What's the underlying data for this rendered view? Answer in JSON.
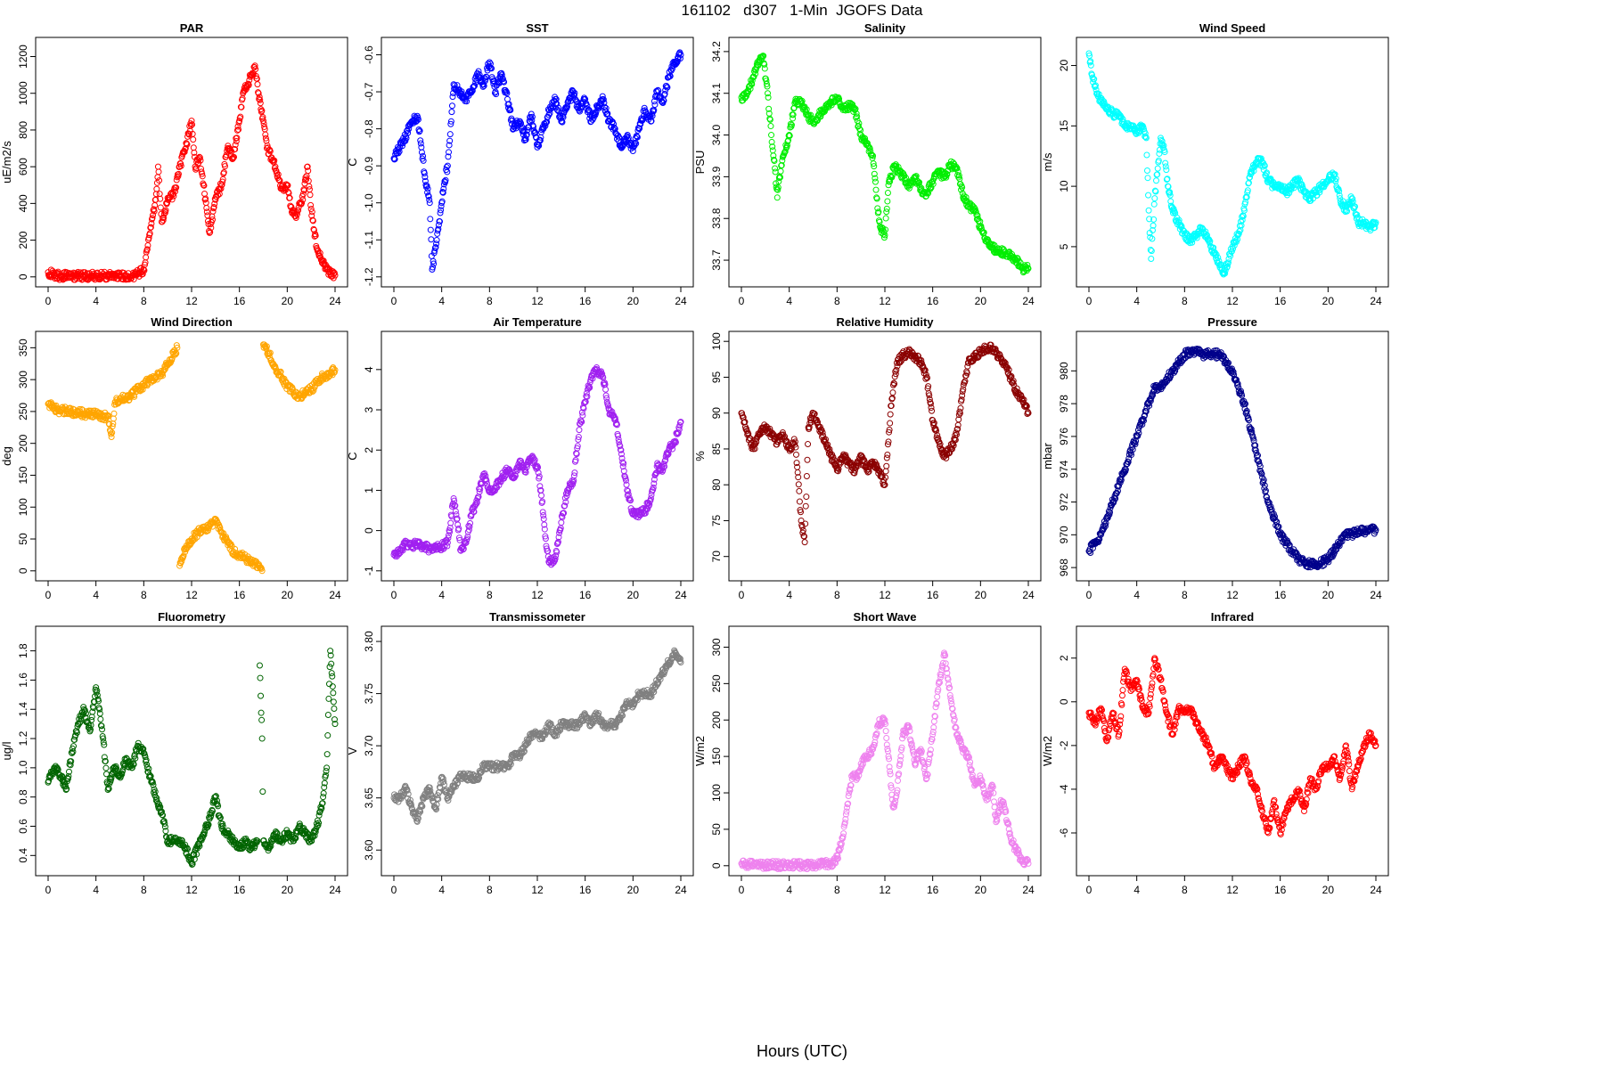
{
  "figure": {
    "title": "161102   d307   1-Min  JGOFS Data",
    "xlabel": "Hours (UTC)"
  },
  "chart_data": [
    {
      "type": "scatter",
      "title": "PAR",
      "ylabel": "uE/m2/s",
      "color": "#ff0000",
      "xlim": [
        0,
        24
      ],
      "ylim": [
        0,
        1250
      ],
      "x": [
        0,
        0.5,
        1,
        2,
        3,
        4,
        5,
        6,
        7,
        7.5,
        8,
        8.3,
        8.6,
        9,
        9.2,
        9.5,
        9.8,
        10,
        10.5,
        11,
        11.5,
        12,
        12.3,
        12.7,
        13,
        13.5,
        14,
        14.5,
        15,
        15.5,
        16,
        16.3,
        16.7,
        17,
        17.3,
        17.6,
        18,
        18.3,
        18.7,
        19,
        19.5,
        20,
        20.3,
        20.7,
        21,
        21.3,
        21.7,
        22,
        22.5,
        23,
        23.5,
        24
      ],
      "y": [
        25,
        10,
        5,
        5,
        5,
        5,
        5,
        5,
        5,
        15,
        40,
        150,
        270,
        420,
        600,
        300,
        350,
        430,
        440,
        600,
        700,
        850,
        600,
        650,
        500,
        240,
        420,
        500,
        700,
        650,
        850,
        1000,
        1050,
        1100,
        1150,
        1000,
        850,
        700,
        650,
        600,
        480,
        500,
        380,
        330,
        400,
        420,
        600,
        370,
        150,
        70,
        25,
        8
      ]
    },
    {
      "type": "scatter",
      "title": "SST",
      "ylabel": "C",
      "color": "#0000ff",
      "xlim": [
        0,
        24
      ],
      "ylim": [
        -1.2,
        -0.58
      ],
      "x": [
        0,
        0.5,
        1,
        1.5,
        2,
        2.3,
        2.6,
        3,
        3.2,
        3.5,
        3.8,
        4,
        4.2,
        4.5,
        4.8,
        5,
        5.5,
        6,
        6.5,
        7,
        7.5,
        8,
        8.5,
        9,
        9.5,
        10,
        10.5,
        11,
        11.5,
        12,
        12.5,
        13,
        13.5,
        14,
        14.5,
        15,
        15.5,
        16,
        16.5,
        17,
        17.5,
        18,
        18.5,
        19,
        19.5,
        20,
        20.5,
        21,
        21.5,
        22,
        22.5,
        23,
        23.5,
        24
      ],
      "y": [
        -0.88,
        -0.85,
        -0.82,
        -0.78,
        -0.77,
        -0.85,
        -0.93,
        -1.0,
        -1.18,
        -1.12,
        -1.05,
        -1.0,
        -0.95,
        -0.9,
        -0.78,
        -0.68,
        -0.7,
        -0.72,
        -0.7,
        -0.65,
        -0.68,
        -0.62,
        -0.7,
        -0.65,
        -0.72,
        -0.8,
        -0.78,
        -0.83,
        -0.76,
        -0.85,
        -0.8,
        -0.75,
        -0.72,
        -0.78,
        -0.74,
        -0.7,
        -0.75,
        -0.72,
        -0.78,
        -0.74,
        -0.72,
        -0.78,
        -0.8,
        -0.85,
        -0.82,
        -0.86,
        -0.8,
        -0.75,
        -0.78,
        -0.7,
        -0.73,
        -0.66,
        -0.62,
        -0.6
      ]
    },
    {
      "type": "scatter",
      "title": "Salinity",
      "ylabel": "PSU",
      "color": "#00ee00",
      "xlim": [
        0,
        24
      ],
      "ylim": [
        33.66,
        34.21
      ],
      "x": [
        0,
        0.5,
        1,
        1.5,
        1.8,
        2.2,
        2.5,
        2.8,
        3,
        3.2,
        3.5,
        4,
        4.5,
        5,
        5.5,
        6,
        6.5,
        7,
        7.5,
        8,
        8.5,
        9,
        9.5,
        10,
        10.5,
        11,
        11.3,
        11.6,
        12,
        12.3,
        12.7,
        13,
        13.5,
        14,
        14.5,
        15,
        15.5,
        16,
        16.5,
        17,
        17.5,
        18,
        18.5,
        19,
        19.5,
        20,
        20.5,
        21,
        21.5,
        22,
        22.5,
        23,
        23.5,
        24
      ],
      "y": [
        34.09,
        34.1,
        34.14,
        34.18,
        34.19,
        34.1,
        34.0,
        33.92,
        33.85,
        33.9,
        33.95,
        34.0,
        34.08,
        34.08,
        34.05,
        34.03,
        34.05,
        34.06,
        34.08,
        34.09,
        34.06,
        34.07,
        34.06,
        34.0,
        33.98,
        33.95,
        33.85,
        33.78,
        33.76,
        33.88,
        33.92,
        33.92,
        33.9,
        33.88,
        33.9,
        33.87,
        33.86,
        33.89,
        33.91,
        33.9,
        33.93,
        33.92,
        33.86,
        33.83,
        33.82,
        33.78,
        33.75,
        33.73,
        33.72,
        33.72,
        33.71,
        33.7,
        33.68,
        33.68
      ]
    },
    {
      "type": "scatter",
      "title": "Wind Speed",
      "ylabel": "m/s",
      "color": "#00ffff",
      "xlim": [
        0,
        24
      ],
      "ylim": [
        2.5,
        21.5
      ],
      "x": [
        0,
        0.3,
        0.6,
        1,
        1.5,
        2,
        2.5,
        3,
        3.5,
        4,
        4.5,
        4.8,
        5,
        5.2,
        5.5,
        5.8,
        6,
        6.3,
        6.6,
        7,
        7.5,
        8,
        8.5,
        9,
        9.5,
        10,
        10.5,
        11,
        11.3,
        11.7,
        12,
        12.5,
        13,
        13.5,
        14,
        14.5,
        15,
        15.5,
        16,
        16.5,
        17,
        17.5,
        18,
        18.5,
        19,
        19.5,
        20,
        20.5,
        21,
        21.5,
        22,
        22.5,
        23,
        23.5,
        24
      ],
      "y": [
        21,
        19,
        18,
        17,
        16.5,
        16,
        16,
        15,
        15,
        14.5,
        15,
        14,
        8,
        4,
        9,
        12,
        14,
        13,
        10,
        8,
        7,
        6,
        5.5,
        6,
        6.5,
        5.5,
        4.5,
        3.5,
        2.8,
        4,
        5,
        6,
        8,
        11,
        12,
        12,
        10.5,
        10,
        10,
        9.5,
        10,
        10.5,
        9.5,
        9,
        9.5,
        10,
        10.5,
        11,
        9,
        8,
        9,
        7,
        7,
        6.5,
        7
      ]
    },
    {
      "type": "scatter",
      "title": "Wind Direction",
      "ylabel": "deg",
      "color": "#ffa500",
      "xlim": [
        0,
        24
      ],
      "ylim": [
        0,
        360
      ],
      "x": [
        0,
        0.5,
        1,
        1.5,
        2,
        2.5,
        3,
        3.5,
        4,
        4.5,
        5,
        5.3,
        5.6,
        6,
        6.5,
        7,
        7.5,
        8,
        8.5,
        9,
        9.5,
        10,
        10.5,
        10.8,
        11,
        11.5,
        12,
        12.5,
        13,
        13.5,
        14,
        14.5,
        15,
        15.5,
        16,
        16.5,
        17,
        17.5,
        17.8,
        17.9,
        18,
        18.5,
        19,
        19.5,
        20,
        20.5,
        21,
        21.5,
        22,
        22.5,
        23,
        23.5,
        24
      ],
      "y": [
        262,
        255,
        250,
        252,
        248,
        250,
        246,
        247,
        245,
        243,
        242,
        210,
        265,
        270,
        270,
        275,
        285,
        290,
        300,
        305,
        310,
        325,
        340,
        350,
        8,
        35,
        50,
        60,
        65,
        70,
        80,
        60,
        45,
        30,
        25,
        20,
        15,
        10,
        5,
        0,
        355,
        340,
        320,
        305,
        290,
        280,
        275,
        278,
        285,
        295,
        305,
        310,
        315
      ]
    },
    {
      "type": "scatter",
      "title": "Air Temperature",
      "ylabel": "C",
      "color": "#a020f0",
      "xlim": [
        0,
        24
      ],
      "ylim": [
        -1,
        4.7
      ],
      "x": [
        0,
        0.5,
        1,
        1.5,
        2,
        2.5,
        3,
        3.5,
        4,
        4.5,
        5,
        5.3,
        5.6,
        6,
        6.5,
        7,
        7.5,
        8,
        8.5,
        9,
        9.5,
        10,
        10.5,
        11,
        11.5,
        12,
        12.3,
        12.7,
        13,
        13.5,
        14,
        14.5,
        15,
        15.5,
        16,
        16.5,
        17,
        17.5,
        18,
        18.5,
        19,
        19.5,
        20,
        20.5,
        21,
        21.5,
        22,
        22.5,
        23,
        23.5,
        24
      ],
      "y": [
        -0.6,
        -0.5,
        -0.3,
        -0.4,
        -0.3,
        -0.4,
        -0.45,
        -0.4,
        -0.4,
        -0.3,
        0.8,
        0.3,
        -0.5,
        -0.3,
        0.4,
        0.8,
        1.4,
        1.0,
        1.1,
        1.3,
        1.5,
        1.3,
        1.7,
        1.5,
        1.8,
        1.6,
        1.0,
        -0.2,
        -0.8,
        -0.7,
        0.2,
        1.0,
        1.2,
        2.5,
        3.2,
        3.8,
        4.0,
        3.8,
        3.0,
        2.8,
        2.0,
        1.0,
        0.4,
        0.4,
        0.5,
        0.8,
        1.6,
        1.5,
        2.0,
        2.2,
        2.7
      ]
    },
    {
      "type": "scatter",
      "title": "Relative Humidity",
      "ylabel": "%",
      "color": "#8b0000",
      "xlim": [
        0,
        24
      ],
      "ylim": [
        68,
        100
      ],
      "x": [
        0,
        0.5,
        1,
        1.5,
        2,
        2.5,
        3,
        3.5,
        4,
        4.5,
        5,
        5.3,
        5.6,
        6,
        6.5,
        7,
        7.5,
        8,
        8.5,
        9,
        9.5,
        10,
        10.5,
        11,
        11.5,
        12,
        12.3,
        12.5,
        13,
        13.5,
        14,
        14.5,
        15,
        15.5,
        16,
        16.5,
        17,
        17.5,
        18,
        18.5,
        19,
        19.5,
        20,
        20.5,
        21,
        21.5,
        22,
        22.5,
        23,
        23.5,
        24
      ],
      "y": [
        90,
        87,
        85,
        87,
        88,
        87,
        86,
        87,
        85,
        86,
        75,
        72,
        88,
        90,
        88,
        86,
        84,
        82,
        84,
        83,
        82,
        84,
        82,
        83,
        82,
        80,
        86,
        91,
        97,
        98,
        98.5,
        98,
        97,
        95,
        89,
        86,
        84,
        85,
        87,
        93,
        97,
        98,
        98.5,
        99,
        99,
        98,
        97,
        95,
        93,
        92,
        90
      ]
    },
    {
      "type": "scatter",
      "title": "Pressure",
      "ylabel": "mbar",
      "color": "#00008b",
      "xlim": [
        0,
        24
      ],
      "ylim": [
        967.8,
        981.8
      ],
      "x": [
        0,
        0.5,
        1,
        1.5,
        2,
        2.5,
        3,
        3.5,
        4,
        4.5,
        5,
        5.5,
        6,
        6.5,
        7,
        7.5,
        8,
        8.5,
        9,
        9.5,
        10,
        10.5,
        11,
        11.5,
        12,
        12.5,
        13,
        13.5,
        14,
        14.5,
        15,
        15.5,
        16,
        16.5,
        17,
        17.5,
        18,
        18.5,
        19,
        19.5,
        20,
        20.5,
        21,
        21.5,
        22,
        22.5,
        23,
        23.5,
        24
      ],
      "y": [
        969,
        969.5,
        970,
        971,
        972,
        973,
        974,
        975,
        976,
        977,
        978,
        979,
        979,
        979.5,
        980,
        980.5,
        981,
        981.2,
        981.2,
        981,
        981,
        981,
        981,
        980.5,
        980,
        979,
        978,
        976.5,
        975,
        973.5,
        972,
        971,
        970,
        969.5,
        969,
        968.5,
        968.3,
        968.2,
        968.2,
        968.3,
        968.5,
        969,
        969.5,
        970,
        970,
        970.2,
        970.2,
        970.3,
        970.3
      ]
    },
    {
      "type": "scatter",
      "title": "Fluorometry",
      "ylabel": "ug/l",
      "color": "#006400",
      "xlim": [
        0,
        24
      ],
      "ylim": [
        0.33,
        1.9
      ],
      "x": [
        0,
        0.5,
        1,
        1.5,
        2,
        2.5,
        3,
        3.5,
        4,
        4.3,
        4.6,
        5,
        5.5,
        6,
        6.5,
        7,
        7.5,
        8,
        8.5,
        9,
        9.5,
        10,
        10.5,
        11,
        11.5,
        12,
        12.5,
        13,
        13.5,
        14,
        14.5,
        15,
        15.5,
        16,
        16.5,
        17,
        17.5,
        17.7,
        17.9,
        18,
        18.5,
        19,
        19.5,
        20,
        20.5,
        21,
        21.5,
        22,
        22.5,
        23,
        23.3,
        23.6,
        24
      ],
      "y": [
        0.9,
        1.0,
        0.95,
        0.85,
        1.1,
        1.3,
        1.4,
        1.25,
        1.55,
        1.4,
        1.2,
        0.85,
        1.0,
        0.95,
        1.05,
        1.0,
        1.15,
        1.1,
        0.95,
        0.8,
        0.7,
        0.5,
        0.5,
        0.5,
        0.45,
        0.35,
        0.45,
        0.55,
        0.65,
        0.8,
        0.6,
        0.55,
        0.5,
        0.45,
        0.5,
        0.45,
        0.5,
        1.7,
        1.2,
        0.5,
        0.45,
        0.55,
        0.5,
        0.55,
        0.5,
        0.6,
        0.55,
        0.5,
        0.6,
        0.8,
        1.0,
        1.8,
        1.3
      ]
    },
    {
      "type": "scatter",
      "title": "Transmissometer",
      "ylabel": "V",
      "color": "#808080",
      "xlim": [
        0,
        24
      ],
      "ylim": [
        3.585,
        3.805
      ],
      "x": [
        0,
        0.5,
        1,
        1.5,
        2,
        2.5,
        3,
        3.5,
        4,
        4.5,
        5,
        5.5,
        6,
        6.5,
        7,
        7.5,
        8,
        8.5,
        9,
        9.5,
        10,
        10.5,
        11,
        11.5,
        12,
        12.5,
        13,
        13.5,
        14,
        14.5,
        15,
        15.5,
        16,
        16.5,
        17,
        17.5,
        18,
        18.5,
        19,
        19.5,
        20,
        20.5,
        21,
        21.5,
        22,
        22.5,
        23,
        23.5,
        24
      ],
      "y": [
        3.65,
        3.65,
        3.66,
        3.64,
        3.63,
        3.65,
        3.66,
        3.64,
        3.67,
        3.65,
        3.66,
        3.67,
        3.67,
        3.67,
        3.67,
        3.68,
        3.68,
        3.68,
        3.68,
        3.68,
        3.69,
        3.69,
        3.7,
        3.71,
        3.71,
        3.71,
        3.72,
        3.71,
        3.72,
        3.72,
        3.72,
        3.72,
        3.73,
        3.72,
        3.73,
        3.72,
        3.72,
        3.72,
        3.73,
        3.74,
        3.74,
        3.75,
        3.75,
        3.75,
        3.76,
        3.77,
        3.78,
        3.79,
        3.78
      ]
    },
    {
      "type": "scatter",
      "title": "Short Wave",
      "ylabel": "W/m2",
      "color": "#ee82ee",
      "xlim": [
        0,
        24
      ],
      "ylim": [
        0,
        315
      ],
      "x": [
        0,
        0.5,
        1,
        2,
        3,
        4,
        5,
        6,
        7,
        7.5,
        8,
        8.5,
        9,
        9.3,
        9.7,
        10,
        10.5,
        11,
        11.5,
        12,
        12.3,
        12.7,
        13,
        13.5,
        14,
        14.5,
        15,
        15.5,
        16,
        16.5,
        17,
        17.5,
        18,
        18.5,
        19,
        19.5,
        20,
        20.5,
        21,
        21.3,
        21.7,
        22,
        22.5,
        23,
        23.5,
        24
      ],
      "y": [
        3,
        2,
        1,
        1,
        1,
        1,
        1,
        1,
        2,
        3,
        10,
        40,
        100,
        125,
        120,
        140,
        150,
        160,
        195,
        200,
        150,
        80,
        100,
        180,
        190,
        140,
        160,
        120,
        180,
        250,
        290,
        230,
        180,
        160,
        150,
        110,
        120,
        90,
        110,
        60,
        90,
        80,
        40,
        20,
        8,
        3
      ]
    },
    {
      "type": "scatter",
      "title": "Infrared",
      "ylabel": "W/m2",
      "color": "#ff0000",
      "xlim": [
        0,
        24
      ],
      "ylim": [
        -7.5,
        3
      ],
      "x": [
        0,
        0.5,
        1,
        1.5,
        2,
        2.5,
        3,
        3.5,
        4,
        4.5,
        5,
        5.5,
        6,
        6.5,
        7,
        7.5,
        8,
        8.5,
        9,
        9.5,
        10,
        10.5,
        11,
        11.5,
        12,
        12.5,
        13,
        13.5,
        14,
        14.5,
        15,
        15.5,
        16,
        16.5,
        17,
        17.5,
        18,
        18.5,
        19,
        19.5,
        20,
        20.5,
        21,
        21.5,
        22,
        22.5,
        23,
        23.5,
        24
      ],
      "y": [
        -0.5,
        -1,
        -0.3,
        -1.8,
        -0.5,
        -1.5,
        1.5,
        0.5,
        1.0,
        -0.3,
        -0.5,
        2.0,
        1.0,
        -0.5,
        -1.5,
        -0.3,
        -0.5,
        -0.3,
        -1.0,
        -1.5,
        -2.0,
        -3.0,
        -2.5,
        -3.0,
        -3.5,
        -3.0,
        -2.5,
        -3.5,
        -4.0,
        -5.0,
        -6.0,
        -4.5,
        -6.0,
        -5.0,
        -4.5,
        -4.0,
        -5.0,
        -3.5,
        -4.0,
        -3.0,
        -3.0,
        -2.5,
        -3.5,
        -2.0,
        -4.0,
        -3.0,
        -2.0,
        -1.5,
        -2.0
      ]
    }
  ]
}
